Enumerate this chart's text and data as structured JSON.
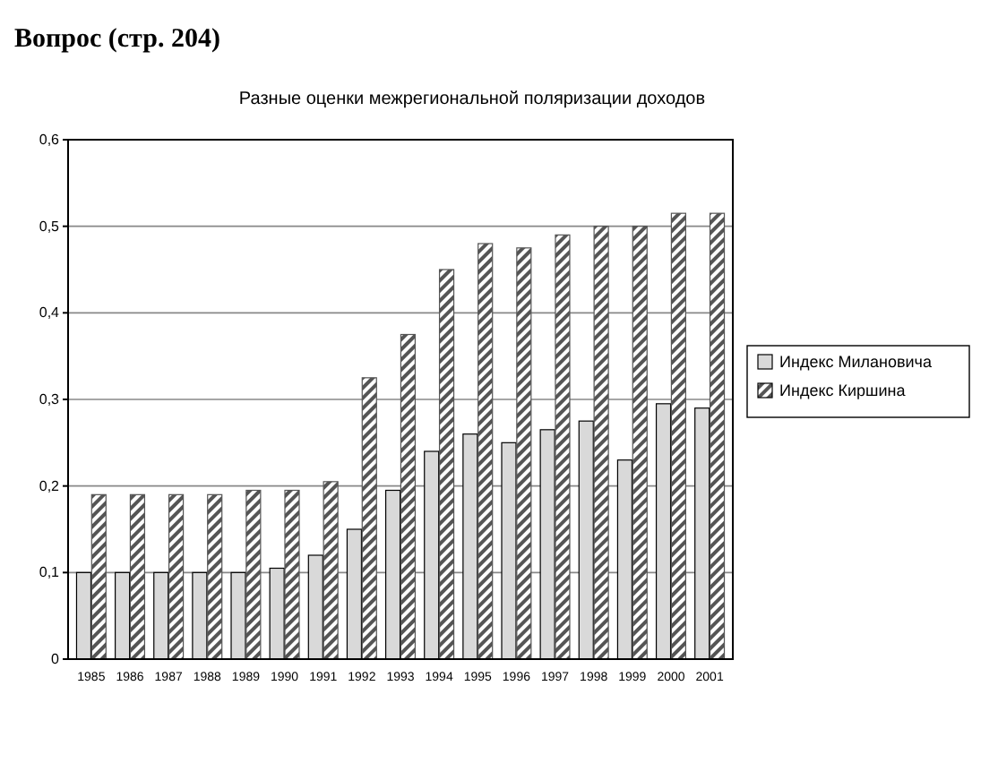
{
  "chart_data": {
    "type": "bar",
    "title": "Разные оценки межрегиональной поляризации доходов",
    "annotations": [
      "Вопрос (стр. 204)"
    ],
    "categories": [
      "1985",
      "1986",
      "1987",
      "1988",
      "1989",
      "1990",
      "1991",
      "1992",
      "1993",
      "1994",
      "1995",
      "1996",
      "1997",
      "1998",
      "1999",
      "2000",
      "2001"
    ],
    "series": [
      {
        "name": "Индекс Милановича",
        "color": "#d9d9d9",
        "values": [
          0.1,
          0.1,
          0.1,
          0.1,
          0.1,
          0.105,
          0.12,
          0.15,
          0.195,
          0.24,
          0.26,
          0.25,
          0.265,
          0.275,
          0.23,
          0.295,
          0.29
        ]
      },
      {
        "name": "Индекс Киршина",
        "color": "#555555",
        "values": [
          0.19,
          0.19,
          0.19,
          0.19,
          0.195,
          0.195,
          0.205,
          0.325,
          0.375,
          0.45,
          0.48,
          0.475,
          0.49,
          0.5,
          0.5,
          0.515,
          0.515
        ]
      }
    ],
    "ylim": [
      0,
      0.6
    ],
    "yticks": [
      {
        "value": 0,
        "label": "0"
      },
      {
        "value": 0.1,
        "label": "0,1"
      },
      {
        "value": 0.2,
        "label": "0,2"
      },
      {
        "value": 0.3,
        "label": "0,3"
      },
      {
        "value": 0.4,
        "label": "0,4"
      },
      {
        "value": 0.5,
        "label": "0,5"
      },
      {
        "value": 0.6,
        "label": "0,6"
      }
    ],
    "grid": "y",
    "legend": "right"
  }
}
